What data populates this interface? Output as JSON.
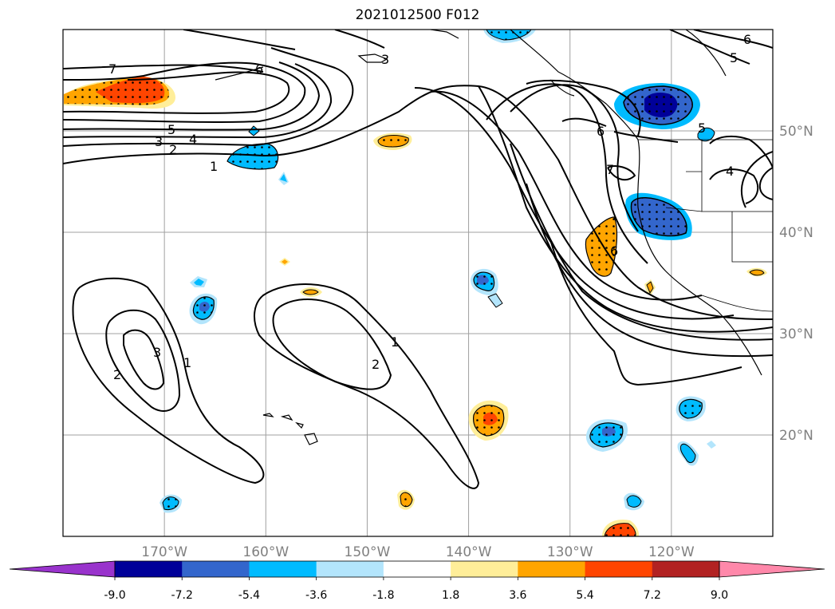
{
  "title": "2021012500 F012",
  "map": {
    "lon_range": [
      -180,
      -110
    ],
    "lat_range": [
      10,
      60
    ],
    "lon_ticks": [
      {
        "value": -170,
        "label": "170°W"
      },
      {
        "value": -160,
        "label": "160°W"
      },
      {
        "value": -150,
        "label": "150°W"
      },
      {
        "value": -140,
        "label": "140°W"
      },
      {
        "value": -130,
        "label": "130°W"
      },
      {
        "value": -120,
        "label": "120°W"
      }
    ],
    "lat_ticks": [
      {
        "value": 50,
        "label": "50°N"
      },
      {
        "value": 40,
        "label": "40°N"
      },
      {
        "value": 30,
        "label": "30°N"
      },
      {
        "value": 20,
        "label": "20°N"
      }
    ],
    "grid": true,
    "colorbar": {
      "placement": "bottom",
      "extend": "both",
      "bounds": [
        -9.0,
        -7.2,
        -5.4,
        -3.6,
        -1.8,
        1.8,
        3.6,
        5.4,
        7.2,
        9.0
      ],
      "labels": [
        "-9.0",
        "-7.2",
        "-5.4",
        "-3.6",
        "-1.8",
        "1.8",
        "3.6",
        "5.4",
        "7.2",
        "9.0"
      ],
      "colors": [
        "#9933cc",
        "#000099",
        "#3366cc",
        "#00bbff",
        "#b3e5fc",
        "#ffffff",
        "#ffee99",
        "#ffa500",
        "#ff4500",
        "#b22222",
        "#ff88aa"
      ]
    },
    "contour_labels": [
      "7",
      "6",
      "5",
      "4",
      "3",
      "2",
      "1",
      "1",
      "2",
      "3",
      "1",
      "2",
      "3",
      "6",
      "5",
      "6",
      "5",
      "4",
      "7",
      "6"
    ]
  }
}
